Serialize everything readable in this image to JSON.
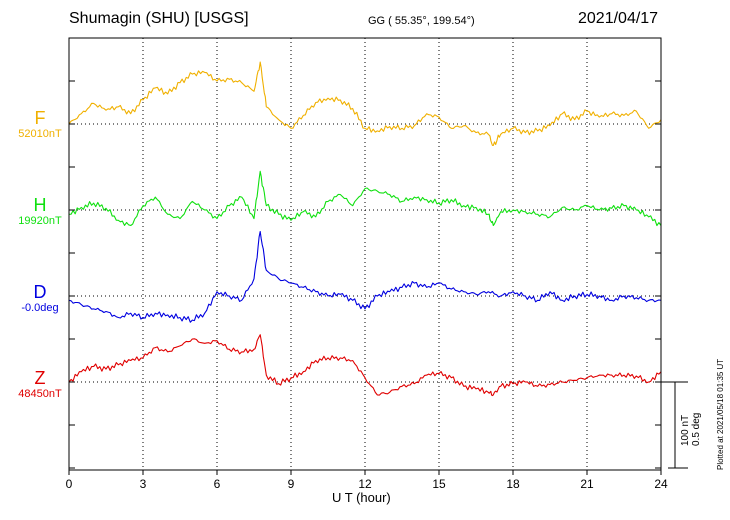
{
  "header": {
    "title": "Shumagin (SHU)  [USGS]",
    "coords": "GG ( 55.35°, 199.54°)",
    "date": "2021/04/17"
  },
  "components": [
    {
      "letter": "F",
      "baseline": "52010nT",
      "color": "#f0b000"
    },
    {
      "letter": "H",
      "baseline": "19920nT",
      "color": "#10e010"
    },
    {
      "letter": "D",
      "baseline": "-0.0deg",
      "color": "#0000e0"
    },
    {
      "letter": "Z",
      "baseline": "48450nT",
      "color": "#e00000"
    }
  ],
  "scale": {
    "line1": "100 nT",
    "line2": "0.5 deg"
  },
  "plotted": "Plotted at 2021/05/18 01:35 UT",
  "chart_data": {
    "type": "line",
    "xlabel": "U T (hour)",
    "xlim": [
      0,
      24
    ],
    "xticks": [
      "0",
      "3",
      "6",
      "9",
      "12",
      "15",
      "18",
      "21",
      "24"
    ],
    "y_units": "nT offset from baseline (D in nT-equivalent, 100 nT = 0.5 deg)",
    "ylim": [
      -100,
      50
    ],
    "series": [
      {
        "name": "F",
        "color": "#f0b000",
        "x": [
          0,
          0.5,
          1,
          1.5,
          2,
          2.5,
          3,
          3.5,
          4,
          4.5,
          5,
          5.5,
          6,
          6.5,
          7,
          7.5,
          7.75,
          8,
          8.5,
          9,
          9.5,
          10,
          10.5,
          11,
          11.5,
          12,
          12.5,
          13,
          13.5,
          14,
          14.5,
          15,
          15.5,
          16,
          16.5,
          17,
          17.2,
          17.5,
          18,
          18.5,
          19,
          19.5,
          20,
          20.5,
          21,
          21.5,
          22,
          22.5,
          23,
          23.5,
          24
        ],
        "values": [
          0,
          12,
          24,
          16,
          20,
          12,
          28,
          42,
          35,
          48,
          58,
          60,
          50,
          52,
          48,
          38,
          72,
          20,
          5,
          -5,
          10,
          25,
          30,
          28,
          18,
          -5,
          -8,
          -3,
          -5,
          -2,
          12,
          8,
          -5,
          -2,
          -10,
          -12,
          -25,
          -12,
          -5,
          -10,
          -8,
          -2,
          12,
          5,
          15,
          8,
          12,
          10,
          15,
          -5,
          5
        ]
      },
      {
        "name": "H",
        "color": "#10e010",
        "x": [
          0,
          0.5,
          1,
          1.5,
          2,
          2.5,
          3,
          3.5,
          4,
          4.5,
          5,
          5.5,
          6,
          6.5,
          7,
          7.5,
          7.75,
          8,
          8.5,
          9,
          9.5,
          10,
          10.5,
          11,
          11.5,
          12,
          12.5,
          13,
          13.5,
          14,
          14.5,
          15,
          15.5,
          16,
          16.5,
          17,
          17.2,
          17.5,
          18,
          18.5,
          19,
          19.5,
          20,
          20.5,
          21,
          21.5,
          22,
          22.5,
          23,
          23.5,
          24
        ],
        "values": [
          -5,
          3,
          8,
          2,
          -12,
          -18,
          5,
          15,
          -5,
          -10,
          10,
          0,
          -10,
          5,
          15,
          -10,
          45,
          5,
          -5,
          -12,
          -2,
          -8,
          10,
          18,
          5,
          25,
          22,
          18,
          10,
          15,
          12,
          8,
          12,
          5,
          3,
          -5,
          -18,
          -2,
          0,
          -2,
          -5,
          -8,
          3,
          0,
          5,
          0,
          2,
          5,
          0,
          -8,
          -18
        ]
      },
      {
        "name": "D",
        "color": "#0000e0",
        "x": [
          0,
          0.5,
          1,
          1.5,
          2,
          2.5,
          3,
          3.5,
          4,
          4.5,
          5,
          5.5,
          6,
          6.5,
          7,
          7.5,
          7.75,
          8,
          8.5,
          9,
          9.5,
          10,
          10.5,
          11,
          11.5,
          12,
          12.5,
          13,
          13.5,
          14,
          14.5,
          15,
          15.5,
          16,
          16.5,
          17,
          17.5,
          18,
          18.5,
          19,
          19.5,
          20,
          20.5,
          21,
          21.5,
          22,
          22.5,
          23,
          23.5,
          24
        ],
        "values": [
          -5,
          -10,
          -15,
          -18,
          -25,
          -20,
          -25,
          -20,
          -22,
          -25,
          -28,
          -20,
          5,
          0,
          -5,
          20,
          75,
          30,
          20,
          15,
          10,
          5,
          0,
          2,
          -5,
          -15,
          0,
          5,
          10,
          15,
          10,
          15,
          8,
          5,
          2,
          5,
          0,
          5,
          0,
          -5,
          5,
          -5,
          0,
          2,
          0,
          -5,
          0,
          -2,
          -5,
          -5
        ]
      },
      {
        "name": "Z",
        "color": "#e00000",
        "x": [
          0,
          0.5,
          1,
          1.5,
          2,
          2.5,
          3,
          3.5,
          4,
          4.5,
          5,
          5.5,
          6,
          6.5,
          7,
          7.5,
          7.75,
          8,
          8.5,
          9,
          9.5,
          10,
          10.5,
          11,
          11.5,
          12,
          12.5,
          13,
          13.5,
          14,
          14.5,
          15,
          15.5,
          16,
          16.5,
          17,
          17.2,
          17.5,
          18,
          18.5,
          19,
          19.5,
          20,
          20.5,
          21,
          21.5,
          22,
          22.5,
          23,
          23.5,
          24
        ],
        "values": [
          0,
          12,
          18,
          15,
          20,
          25,
          28,
          40,
          35,
          42,
          50,
          45,
          48,
          38,
          35,
          38,
          55,
          8,
          -2,
          5,
          12,
          25,
          28,
          28,
          25,
          5,
          -15,
          -12,
          -5,
          -2,
          8,
          10,
          5,
          -5,
          -8,
          -12,
          -15,
          -5,
          -2,
          0,
          -5,
          -3,
          0,
          2,
          5,
          8,
          8,
          8,
          7,
          0,
          12
        ]
      }
    ]
  }
}
